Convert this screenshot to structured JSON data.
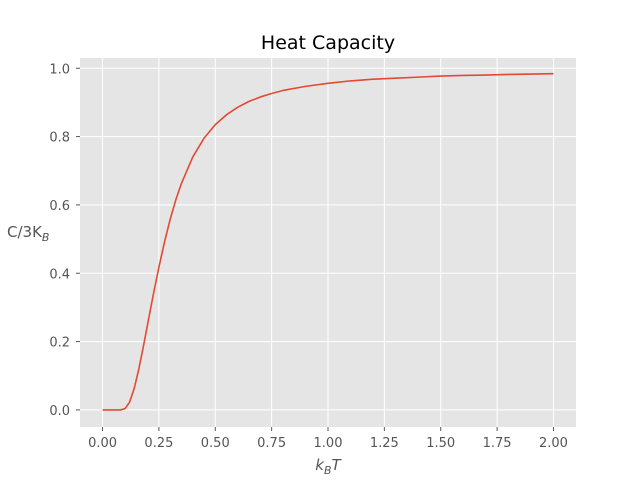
{
  "chart_data": {
    "type": "line",
    "title": "Heat Capacity",
    "xlabel": {
      "main": "k",
      "sub": "B",
      "tail": "T"
    },
    "ylabel": {
      "main": "C/3K",
      "sub": "B"
    },
    "xlim": [
      -0.1,
      2.1
    ],
    "ylim": [
      -0.05,
      1.03
    ],
    "xticks": [
      0.0,
      0.25,
      0.5,
      0.75,
      1.0,
      1.25,
      1.5,
      1.75,
      2.0
    ],
    "xtick_labels": [
      "0.00",
      "0.25",
      "0.50",
      "0.75",
      "1.00",
      "1.25",
      "1.50",
      "1.75",
      "2.00"
    ],
    "yticks": [
      0.0,
      0.2,
      0.4,
      0.6,
      0.8,
      1.0
    ],
    "ytick_labels": [
      "0.0",
      "0.2",
      "0.4",
      "0.6",
      "0.8",
      "1.0"
    ],
    "grid": true,
    "series": [
      {
        "color": "#e24a33",
        "x": [
          0.0,
          0.05,
          0.08,
          0.1,
          0.12,
          0.14,
          0.16,
          0.18,
          0.2,
          0.225,
          0.25,
          0.275,
          0.3,
          0.325,
          0.35,
          0.4,
          0.45,
          0.5,
          0.55,
          0.6,
          0.65,
          0.7,
          0.75,
          0.8,
          0.9,
          1.0,
          1.1,
          1.2,
          1.3,
          1.4,
          1.5,
          1.6,
          1.7,
          1.8,
          1.9,
          2.0
        ],
        "y": [
          0.0,
          0.0,
          0.0,
          0.004,
          0.023,
          0.062,
          0.117,
          0.182,
          0.251,
          0.337,
          0.418,
          0.492,
          0.558,
          0.615,
          0.663,
          0.74,
          0.795,
          0.835,
          0.864,
          0.886,
          0.903,
          0.916,
          0.926,
          0.935,
          0.947,
          0.956,
          0.963,
          0.968,
          0.971,
          0.974,
          0.977,
          0.979,
          0.98,
          0.982,
          0.983,
          0.984
        ]
      }
    ]
  }
}
